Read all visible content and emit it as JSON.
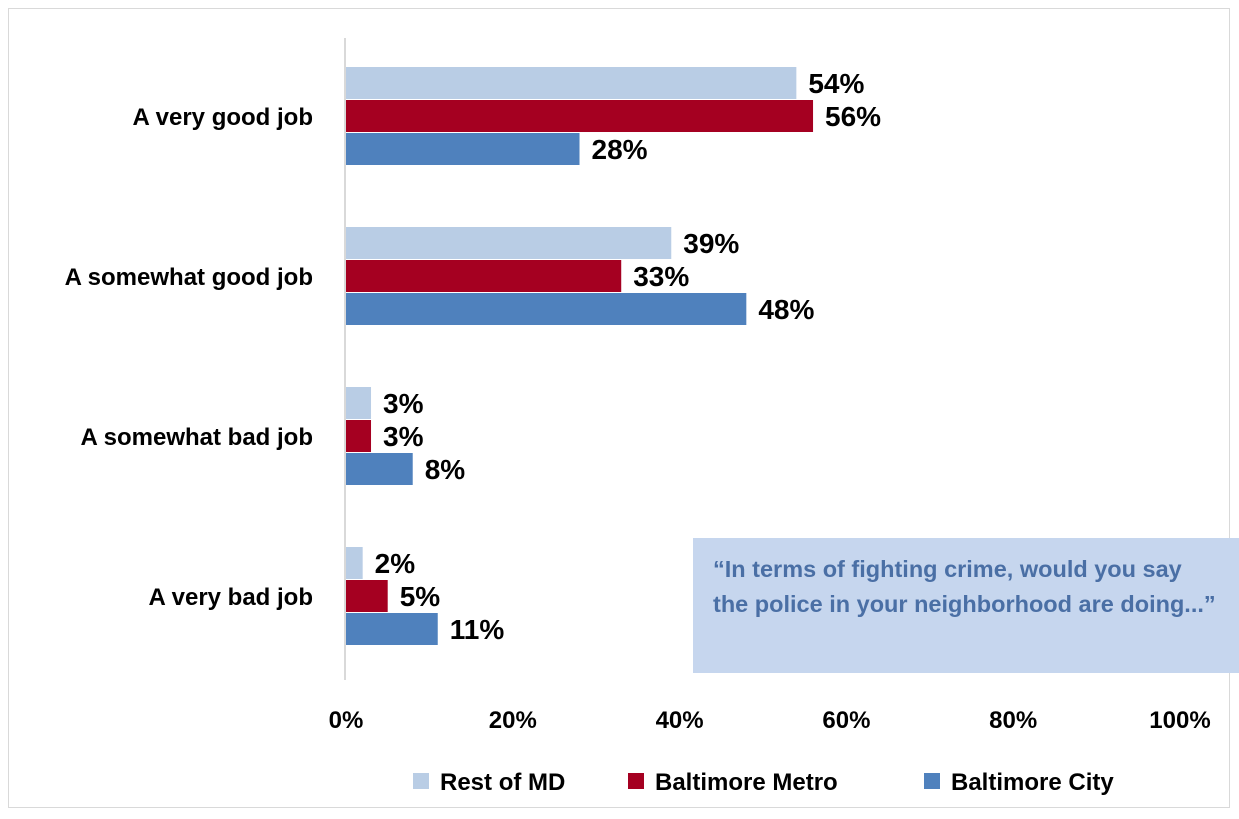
{
  "chart_data": {
    "type": "bar",
    "orientation": "horizontal",
    "categories": [
      "A very good job",
      "A somewhat good job",
      "A somewhat bad job",
      "A very bad job"
    ],
    "series": [
      {
        "name": "Rest of MD",
        "values": [
          54,
          39,
          3,
          2
        ],
        "color": "#b9cde5"
      },
      {
        "name": "Baltimore Metro",
        "values": [
          56,
          33,
          3,
          5
        ],
        "color": "#a50021"
      },
      {
        "name": "Baltimore City",
        "values": [
          28,
          48,
          8,
          11
        ],
        "color": "#4f81bd"
      }
    ],
    "value_suffix": "%",
    "xlim": [
      0,
      100
    ],
    "xticks": [
      "0%",
      "20%",
      "40%",
      "60%",
      "80%",
      "100%"
    ],
    "grid": false,
    "legend_position": "bottom"
  },
  "callout": {
    "text": "“In terms of fighting crime, would you say the police in your neighborhood are doing...”"
  }
}
